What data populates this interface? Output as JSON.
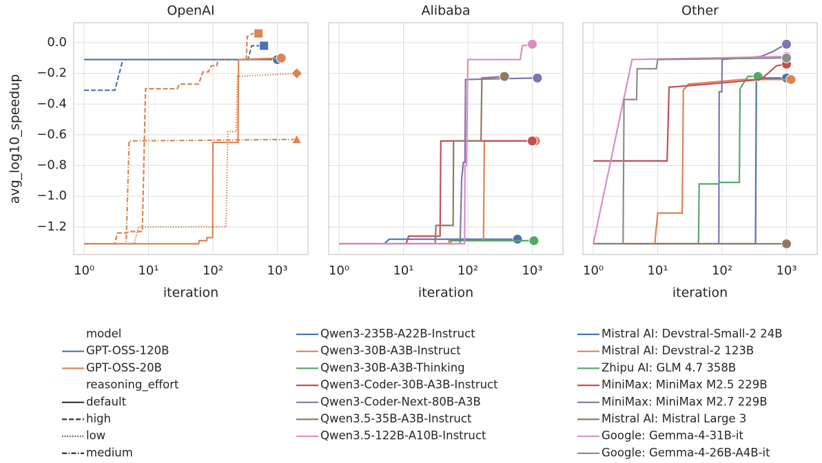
{
  "chart_data": [
    {
      "type": "line",
      "title": "OpenAI",
      "xlabel": "iteration",
      "ylabel": "avg_log10_speedup",
      "xscale": "log",
      "xlim": [
        0.69,
        2990
      ],
      "ylim": [
        -1.38,
        0.13
      ],
      "grid": true,
      "xticks": [
        {
          "value": 1,
          "label": "10⁰"
        },
        {
          "value": 10,
          "label": "10¹"
        },
        {
          "value": 100,
          "label": "10²"
        },
        {
          "value": 1000,
          "label": "10³"
        }
      ],
      "yticks": [
        {
          "value": 0,
          "label": "0.0"
        },
        {
          "value": -0.2,
          "label": "−0.2"
        },
        {
          "value": -0.4,
          "label": "−0.4"
        },
        {
          "value": -0.6,
          "label": "−0.6"
        },
        {
          "value": -0.8,
          "label": "−0.8"
        },
        {
          "value": -1,
          "label": "−1.0"
        },
        {
          "value": -1.2,
          "label": "−1.2"
        }
      ],
      "model_legend_title": "model",
      "effort_legend_title": "reasoning_effort",
      "series": [
        {
          "name": "GPT-OSS-120B",
          "reasoning_effort": "default",
          "color": "#4c72b0",
          "dash": "solid",
          "marker": "circle",
          "x": [
            1,
            1000
          ],
          "values": [
            -0.11,
            -0.11
          ]
        },
        {
          "name": "GPT-OSS-20B",
          "reasoning_effort": "high",
          "color": "#dd8452",
          "dash": "dashed",
          "marker": "square",
          "x": [
            1,
            3,
            3.3,
            4.5,
            5,
            8,
            9,
            28,
            30,
            60,
            70,
            85,
            95,
            115,
            120,
            330,
            340,
            420,
            510
          ],
          "values": [
            -1.31,
            -1.31,
            -1.24,
            -1.24,
            -1.23,
            -1.23,
            -0.3,
            -0.3,
            -0.27,
            -0.27,
            -0.19,
            -0.19,
            -0.15,
            -0.15,
            -0.11,
            -0.11,
            0.04,
            0.06,
            0.06
          ]
        },
        {
          "name": "GPT-OSS-120B",
          "reasoning_effort": "high",
          "color": "#4c72b0",
          "dash": "dashed",
          "marker": "square",
          "x": [
            1,
            3,
            4,
            350,
            400,
            620
          ],
          "values": [
            -0.31,
            -0.31,
            -0.11,
            -0.11,
            -0.02,
            -0.02
          ]
        },
        {
          "name": "GPT-OSS-20B",
          "reasoning_effort": "default",
          "color": "#dd8452",
          "dash": "solid",
          "marker": "circle",
          "x": [
            1,
            60,
            61,
            80,
            81,
            99,
            100,
            245,
            250,
            1150
          ],
          "values": [
            -1.31,
            -1.31,
            -1.29,
            -1.29,
            -1.27,
            -1.27,
            -0.65,
            -0.65,
            -0.11,
            -0.1
          ]
        },
        {
          "name": "GPT-OSS-20B",
          "reasoning_effort": "low",
          "color": "#dd8452",
          "dash": "dotted",
          "marker": "diamond",
          "x": [
            1,
            6,
            7,
            160,
            170,
            230,
            240,
            2000
          ],
          "values": [
            -1.31,
            -1.31,
            -1.2,
            -1.2,
            -0.58,
            -0.58,
            -0.22,
            -0.2
          ]
        },
        {
          "name": "GPT-OSS-20B",
          "reasoning_effort": "medium",
          "color": "#dd8452",
          "dash": "dashdot",
          "marker": "triangle",
          "x": [
            1,
            4.5,
            5,
            2000
          ],
          "values": [
            -1.31,
            -1.31,
            -0.64,
            -0.63
          ]
        }
      ]
    },
    {
      "type": "line",
      "title": "Alibaba",
      "xlabel": "iteration",
      "xscale": "log",
      "xlim": [
        0.69,
        2990
      ],
      "ylim": [
        -1.38,
        0.13
      ],
      "grid": true,
      "xticks": [
        {
          "value": 1,
          "label": "10⁰"
        },
        {
          "value": 10,
          "label": "10¹"
        },
        {
          "value": 100,
          "label": "10²"
        },
        {
          "value": 1000,
          "label": "10³"
        }
      ],
      "yticks": [
        0,
        -0.2,
        -0.4,
        -0.6,
        -0.8,
        -1,
        -1.2
      ],
      "series": [
        {
          "name": "Qwen3-235B-A22B-Instruct",
          "color": "#4c72b0",
          "x": [
            1,
            5,
            6,
            590
          ],
          "values": [
            -1.31,
            -1.31,
            -1.28,
            -1.28
          ]
        },
        {
          "name": "Qwen3-30B-A3B-Instruct",
          "color": "#dd8452",
          "x": [
            1,
            50,
            51,
            175,
            180,
            1120
          ],
          "values": [
            -1.31,
            -1.31,
            -1.29,
            -1.29,
            -0.64,
            -0.64
          ]
        },
        {
          "name": "Qwen3-30B-A3B-Thinking",
          "color": "#55a868",
          "x": [
            1,
            54,
            55,
            1060
          ],
          "values": [
            -1.31,
            -1.31,
            -1.29,
            -1.29
          ]
        },
        {
          "name": "Qwen3-Coder-30B-A3B-Instruct",
          "color": "#c44e52",
          "x": [
            1,
            11,
            12,
            37,
            38,
            1000
          ],
          "values": [
            -1.31,
            -1.31,
            -1.26,
            -1.26,
            -0.64,
            -0.64
          ]
        },
        {
          "name": "Qwen3-Coder-Next-80B-A3B",
          "color": "#8172b3",
          "x": [
            1,
            75,
            76,
            80,
            85,
            90,
            92,
            1200
          ],
          "values": [
            -1.31,
            -1.31,
            -1.29,
            -0.89,
            -0.78,
            -0.78,
            -0.24,
            -0.23
          ]
        },
        {
          "name": "Qwen3.5-35B-A3B-Instruct",
          "color": "#937860",
          "x": [
            1,
            31,
            32,
            59,
            60,
            160,
            165,
            370
          ],
          "values": [
            -1.31,
            -1.31,
            -1.19,
            -1.19,
            -0.64,
            -0.64,
            -0.23,
            -0.22
          ]
        },
        {
          "name": "Qwen3.5-122B-A10B-Instruct",
          "color": "#da8bc3",
          "x": [
            1,
            89,
            90,
            95,
            100,
            650,
            700,
            1000
          ],
          "values": [
            -1.31,
            -1.31,
            -0.8,
            -0.8,
            -0.11,
            -0.11,
            -0.02,
            -0.01
          ]
        }
      ]
    },
    {
      "type": "line",
      "title": "Other",
      "xlabel": "iteration",
      "xscale": "log",
      "xlim": [
        0.69,
        2990
      ],
      "ylim": [
        -1.38,
        0.13
      ],
      "grid": true,
      "xticks": [
        {
          "value": 1,
          "label": "10⁰"
        },
        {
          "value": 10,
          "label": "10¹"
        },
        {
          "value": 100,
          "label": "10²"
        },
        {
          "value": 1000,
          "label": "10³"
        }
      ],
      "yticks": [
        0,
        -0.2,
        -0.4,
        -0.6,
        -0.8,
        -1,
        -1.2
      ],
      "series": [
        {
          "name": "Mistral AI: Devstral-Small-2 24B",
          "color": "#4c72b0",
          "x": [
            1,
            330,
            340,
            1000
          ],
          "values": [
            -1.31,
            -1.31,
            -0.23,
            -0.23
          ]
        },
        {
          "name": "Mistral AI: Devstral-2 123B",
          "color": "#dd8452",
          "x": [
            1,
            9,
            10,
            24,
            25,
            30,
            200,
            1170
          ],
          "values": [
            -1.31,
            -1.31,
            -1.11,
            -1.11,
            -0.31,
            -0.27,
            -0.24,
            -0.24
          ]
        },
        {
          "name": "Zhipu AI: GLM 4.7 358B",
          "color": "#55a868",
          "x": [
            1,
            43,
            44,
            89,
            90,
            185,
            190,
            250,
            360
          ],
          "values": [
            -1.31,
            -1.31,
            -0.92,
            -0.92,
            -0.91,
            -0.91,
            -0.3,
            -0.22,
            -0.22
          ]
        },
        {
          "name": "MiniMax: MiniMax M2.5 229B",
          "color": "#c44e52",
          "x": [
            1,
            14,
            15,
            60,
            400,
            700,
            1000
          ],
          "values": [
            -0.77,
            -0.77,
            -0.29,
            -0.27,
            -0.24,
            -0.15,
            -0.14
          ]
        },
        {
          "name": "MiniMax: MiniMax M2.7 229B",
          "color": "#8172b3",
          "x": [
            1,
            89,
            90,
            99,
            100,
            400,
            600,
            800,
            1000
          ],
          "values": [
            -1.31,
            -1.31,
            -0.32,
            -0.32,
            -0.11,
            -0.09,
            -0.06,
            -0.03,
            -0.01
          ]
        },
        {
          "name": "Mistral AI: Mistral Large 3",
          "color": "#937860",
          "x": [
            1,
            1000
          ],
          "values": [
            -1.31,
            -1.31
          ]
        },
        {
          "name": "Google: Gemma-4-31B-it",
          "color": "#da8bc3",
          "x": [
            1,
            4,
            1000
          ],
          "values": [
            -1.31,
            -0.11,
            -0.09
          ]
        },
        {
          "name": "Google: Gemma-4-26B-A4B-it",
          "color": "#8c8c8c",
          "x": [
            1,
            2.9,
            3,
            4.7,
            4.8,
            9.5,
            10,
            1000
          ],
          "values": [
            -1.31,
            -1.31,
            -0.37,
            -0.37,
            -0.17,
            -0.17,
            -0.11,
            -0.1
          ]
        }
      ]
    }
  ]
}
